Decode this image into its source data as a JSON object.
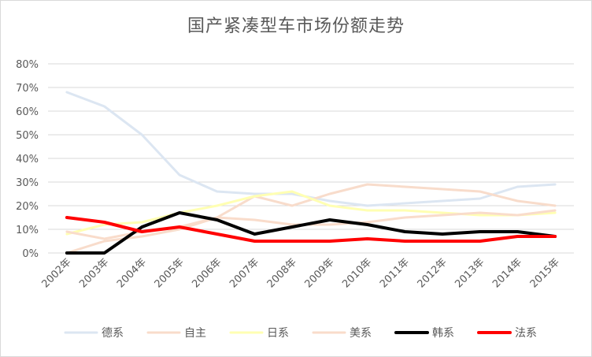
{
  "chart_data": {
    "type": "line",
    "title": "国产紧凑型车市场份额走势",
    "xlabel": "",
    "ylabel": "",
    "categories": [
      "2002年",
      "2003年",
      "2004年",
      "2005年",
      "2006年",
      "2007年",
      "2008年",
      "2009年",
      "2010年",
      "2011年",
      "2012年",
      "2013年",
      "2014年",
      "2015年"
    ],
    "ylim": [
      0,
      0.8
    ],
    "yticks": [
      0,
      0.1,
      0.2,
      0.3,
      0.4,
      0.5,
      0.6,
      0.7,
      0.8
    ],
    "ytick_labels": [
      "0%",
      "10%",
      "20%",
      "30%",
      "40%",
      "50%",
      "60%",
      "70%",
      "80%"
    ],
    "grid": true,
    "legend_position": "bottom",
    "series": [
      {
        "name": "德系",
        "color": "#dce6f2",
        "width": 3,
        "values": [
          0.68,
          0.62,
          0.5,
          0.33,
          0.26,
          0.25,
          0.25,
          0.22,
          0.2,
          0.21,
          0.22,
          0.23,
          0.28,
          0.29
        ]
      },
      {
        "name": "自主",
        "color": "#f8dccb",
        "width": 3,
        "values": [
          0.0,
          0.05,
          0.07,
          0.1,
          0.15,
          0.24,
          0.2,
          0.25,
          0.29,
          0.28,
          0.27,
          0.26,
          0.22,
          0.2
        ]
      },
      {
        "name": "日系",
        "color": "#ffffb3",
        "width": 3,
        "values": [
          0.08,
          0.12,
          0.13,
          0.17,
          0.2,
          0.24,
          0.26,
          0.2,
          0.18,
          0.18,
          0.17,
          0.16,
          0.16,
          0.17
        ]
      },
      {
        "name": "美系",
        "color": "#f9dccb",
        "width": 3,
        "values": [
          0.09,
          0.06,
          0.09,
          0.11,
          0.15,
          0.14,
          0.12,
          0.12,
          0.13,
          0.15,
          0.16,
          0.17,
          0.16,
          0.18
        ]
      },
      {
        "name": "韩系",
        "color": "#000000",
        "width": 4,
        "values": [
          0.0,
          0.0,
          0.11,
          0.17,
          0.14,
          0.08,
          0.11,
          0.14,
          0.12,
          0.09,
          0.08,
          0.09,
          0.09,
          0.07
        ]
      },
      {
        "name": "法系",
        "color": "#ff0000",
        "width": 4,
        "values": [
          0.15,
          0.13,
          0.09,
          0.11,
          0.08,
          0.05,
          0.05,
          0.05,
          0.06,
          0.05,
          0.05,
          0.05,
          0.07,
          0.07
        ]
      }
    ]
  }
}
